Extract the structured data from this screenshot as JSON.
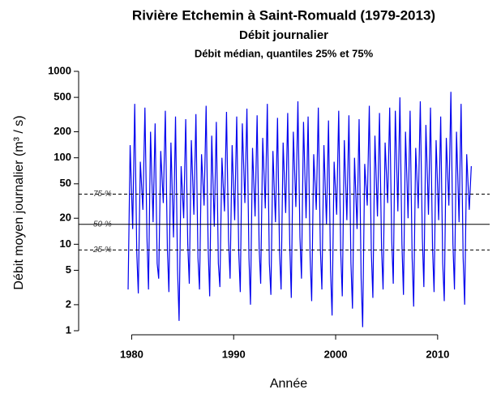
{
  "chart_data": {
    "type": "line",
    "title": "Rivière Etchemin à Saint-Romuald (1979-2013)",
    "subtitle": "Débit journalier",
    "caption": "Débit médian, quantiles 25% et 75%",
    "x_label": "Année",
    "y_label": "Débit moyen journalier (m³ / s)",
    "log_y": true,
    "xlim": [
      1974.8,
      2015.1
    ],
    "xticks": [
      1980,
      1990,
      2000,
      2010
    ],
    "ylim": [
      1,
      1000
    ],
    "yticks": [
      1,
      2,
      5,
      10,
      20,
      50,
      100,
      200,
      500,
      1000
    ],
    "reference_lines": [
      {
        "label": "75 %",
        "value": 38
      },
      {
        "label": "50 %",
        "value": 17
      },
      {
        "label": "25 %",
        "value": 8.6
      }
    ],
    "series": [
      {
        "name": "Débit journalier",
        "color": "#0000ee",
        "x": [
          1979.65,
          1979.85,
          1980.1,
          1980.3,
          1980.5,
          1980.65,
          1980.85,
          1981.1,
          1981.3,
          1981.5,
          1981.65,
          1981.85,
          1982.1,
          1982.3,
          1982.5,
          1982.65,
          1982.85,
          1983.1,
          1983.3,
          1983.5,
          1983.65,
          1983.85,
          1984.1,
          1984.3,
          1984.5,
          1984.65,
          1984.85,
          1985.1,
          1985.3,
          1985.5,
          1985.65,
          1985.85,
          1986.1,
          1986.3,
          1986.5,
          1986.65,
          1986.85,
          1987.1,
          1987.3,
          1987.5,
          1987.65,
          1987.85,
          1988.1,
          1988.3,
          1988.5,
          1988.65,
          1988.85,
          1989.1,
          1989.3,
          1989.5,
          1989.65,
          1989.85,
          1990.1,
          1990.3,
          1990.5,
          1990.65,
          1990.85,
          1991.1,
          1991.3,
          1991.5,
          1991.65,
          1991.85,
          1992.1,
          1992.3,
          1992.5,
          1992.65,
          1992.85,
          1993.1,
          1993.3,
          1993.5,
          1993.65,
          1993.85,
          1994.1,
          1994.3,
          1994.5,
          1994.65,
          1994.85,
          1995.1,
          1995.3,
          1995.5,
          1995.65,
          1995.85,
          1996.1,
          1996.3,
          1996.5,
          1996.65,
          1996.85,
          1997.1,
          1997.3,
          1997.5,
          1997.65,
          1997.85,
          1998.1,
          1998.3,
          1998.5,
          1998.65,
          1998.85,
          1999.1,
          1999.3,
          1999.5,
          1999.65,
          1999.85,
          2000.1,
          2000.3,
          2000.5,
          2000.65,
          2000.85,
          2001.1,
          2001.3,
          2001.5,
          2001.65,
          2001.85,
          2002.1,
          2002.3,
          2002.5,
          2002.65,
          2002.85,
          2003.1,
          2003.3,
          2003.5,
          2003.65,
          2003.85,
          2004.1,
          2004.3,
          2004.5,
          2004.65,
          2004.85,
          2005.1,
          2005.3,
          2005.5,
          2005.65,
          2005.85,
          2006.1,
          2006.3,
          2006.5,
          2006.65,
          2006.85,
          2007.1,
          2007.3,
          2007.5,
          2007.65,
          2007.85,
          2008.1,
          2008.3,
          2008.5,
          2008.65,
          2008.85,
          2009.1,
          2009.3,
          2009.5,
          2009.65,
          2009.85,
          2010.1,
          2010.3,
          2010.5,
          2010.65,
          2010.85,
          2011.1,
          2011.3,
          2011.5,
          2011.65,
          2011.85,
          2012.1,
          2012.3,
          2012.5,
          2012.65,
          2012.85,
          2013.1,
          2013.3
        ],
        "values": [
          3,
          140,
          15,
          420,
          8,
          2.7,
          90,
          25,
          380,
          12,
          3,
          200,
          18,
          250,
          6,
          4,
          120,
          30,
          350,
          9,
          2.8,
          150,
          12,
          300,
          5,
          1.3,
          80,
          20,
          280,
          10,
          3.5,
          160,
          22,
          320,
          7,
          3,
          110,
          28,
          400,
          9,
          2.5,
          180,
          16,
          260,
          6,
          3.2,
          100,
          24,
          340,
          11,
          4,
          140,
          19,
          300,
          8,
          2.8,
          250,
          30,
          370,
          7,
          2,
          130,
          21,
          310,
          9,
          3.5,
          170,
          26,
          420,
          6,
          2.6,
          120,
          18,
          290,
          8,
          3,
          150,
          23,
          330,
          10,
          2.4,
          200,
          27,
          450,
          12,
          4,
          260,
          20,
          300,
          7,
          2.2,
          110,
          25,
          380,
          9,
          3,
          140,
          17,
          270,
          5,
          1.5,
          90,
          22,
          350,
          8,
          2.5,
          160,
          19,
          310,
          6,
          1.8,
          100,
          15,
          280,
          4,
          1.1,
          85,
          28,
          400,
          8,
          2.4,
          180,
          21,
          330,
          9,
          3,
          150,
          30,
          380,
          11,
          3.5,
          350,
          24,
          500,
          10,
          2.6,
          200,
          20,
          350,
          7,
          1.9,
          130,
          26,
          450,
          12,
          3.2,
          240,
          22,
          380,
          9,
          2.8,
          160,
          19,
          300,
          6,
          2.2,
          170,
          28,
          580,
          10,
          3,
          200,
          18,
          420,
          7,
          2,
          110,
          25,
          80
        ]
      }
    ]
  }
}
